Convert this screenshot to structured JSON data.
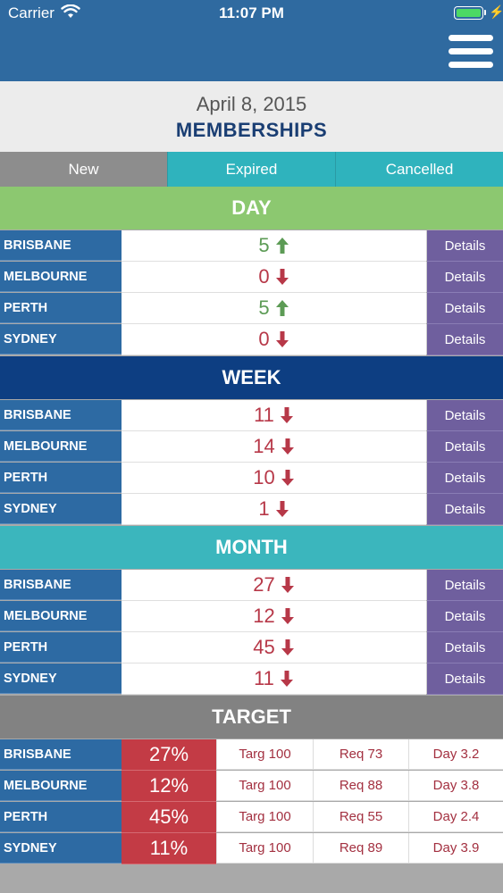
{
  "status_bar": {
    "carrier": "Carrier",
    "time": "11:07 PM"
  },
  "header": {
    "date": "April 8, 2015",
    "title": "MEMBERSHIPS"
  },
  "tabs": [
    "New",
    "Expired",
    "Cancelled"
  ],
  "details_label": "Details",
  "colors": {
    "up": "#5c9b55",
    "down": "#b73848",
    "day": "#8cc870",
    "week": "#0d3e82",
    "month": "#3bb6bd",
    "target": "#828282"
  },
  "sections": [
    {
      "title": "DAY",
      "rows": [
        {
          "city": "BRISBANE",
          "value": "5",
          "trend": "up"
        },
        {
          "city": "MELBOURNE",
          "value": "0",
          "trend": "down"
        },
        {
          "city": "PERTH",
          "value": "5",
          "trend": "up"
        },
        {
          "city": "SYDNEY",
          "value": "0",
          "trend": "down"
        }
      ]
    },
    {
      "title": "WEEK",
      "rows": [
        {
          "city": "BRISBANE",
          "value": "11",
          "trend": "down"
        },
        {
          "city": "MELBOURNE",
          "value": "14",
          "trend": "down"
        },
        {
          "city": "PERTH",
          "value": "10",
          "trend": "down"
        },
        {
          "city": "SYDNEY",
          "value": "1",
          "trend": "down"
        }
      ]
    },
    {
      "title": "MONTH",
      "rows": [
        {
          "city": "BRISBANE",
          "value": "27",
          "trend": "down"
        },
        {
          "city": "MELBOURNE",
          "value": "12",
          "trend": "down"
        },
        {
          "city": "PERTH",
          "value": "45",
          "trend": "down"
        },
        {
          "city": "SYDNEY",
          "value": "11",
          "trend": "down"
        }
      ]
    }
  ],
  "target": {
    "title": "TARGET",
    "rows": [
      {
        "city": "BRISBANE",
        "percent": "27%",
        "targ": "Targ 100",
        "req": "Req 73",
        "day": "Day 3.2"
      },
      {
        "city": "MELBOURNE",
        "percent": "12%",
        "targ": "Targ 100",
        "req": "Req 88",
        "day": "Day 3.8"
      },
      {
        "city": "PERTH",
        "percent": "45%",
        "targ": "Targ 100",
        "req": "Req 55",
        "day": "Day 2.4"
      },
      {
        "city": "SYDNEY",
        "percent": "11%",
        "targ": "Targ 100",
        "req": "Req 89",
        "day": "Day 3.9"
      }
    ]
  }
}
